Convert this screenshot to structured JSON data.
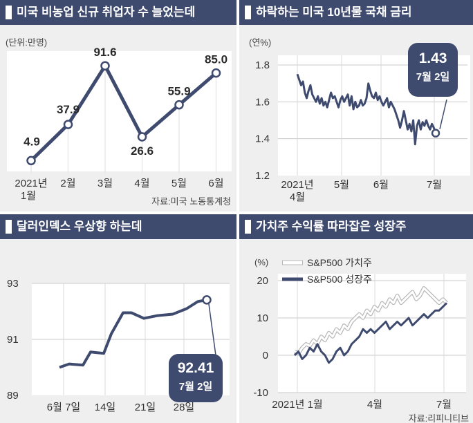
{
  "colors": {
    "header_bg": "#3e4a6e",
    "line": "#3e4a6e",
    "panel_bg": "#efeff0",
    "plot_bg": "#ffffff",
    "value_line": "#e9e9e9"
  },
  "panels": {
    "p1": {
      "title": "미국 비농업 신규 취업자 수 늘었는데",
      "unit": "(단위:만명)",
      "source": "자료:미국 노동통계청"
    },
    "p2": {
      "title": "하락하는 미국 10년물 국채 금리",
      "unit": "(연%)",
      "callout_value": "1.43",
      "callout_date": "7월 2일"
    },
    "p3": {
      "title": "달러인덱스 우상향 하는데",
      "callout_value": "92.41",
      "callout_date": "7월 2일"
    },
    "p4": {
      "title": "가치주 수익률 따라잡은 성장주",
      "unit": "(%)",
      "source": "자료:리피니티브"
    }
  },
  "chart_data": [
    {
      "type": "line",
      "title": "미국 비농업 신규 취업자 수 늘었는데",
      "unit": "(단위:만명)",
      "categories": [
        "2021년 1월",
        "2월",
        "3월",
        "4월",
        "5월",
        "6월"
      ],
      "x_tick_labels": [
        [
          "2021년",
          "1월"
        ],
        [
          "2월"
        ],
        [
          "3월"
        ],
        [
          "4월"
        ],
        [
          "5월"
        ],
        [
          "6월"
        ]
      ],
      "values": [
        4.9,
        37.9,
        91.6,
        26.6,
        55.9,
        85.0
      ],
      "data_labels": [
        "4.9",
        "37.9",
        "91.6",
        "26.6",
        "55.9",
        "85.0"
      ],
      "ylim": [
        -5,
        105
      ],
      "grid": false
    },
    {
      "type": "line",
      "title": "하락하는 미국 10년물 국채 금리",
      "unit": "(연%)",
      "y_ticks": [
        "1.8",
        "1.6",
        "1.4",
        "1.2"
      ],
      "x_ticks": [
        [
          "2021년",
          "4월"
        ],
        [
          "5월"
        ],
        [
          "6월"
        ],
        [
          "7월"
        ]
      ],
      "ylim": [
        1.2,
        1.8
      ],
      "grid": true,
      "annotation": {
        "value": "1.43",
        "date": "7월 2일"
      },
      "series": [
        {
          "values": [
            1.75,
            1.72,
            1.69,
            1.71,
            1.65,
            1.62,
            1.66,
            1.69,
            1.64,
            1.62,
            1.6,
            1.63,
            1.59,
            1.62,
            1.58,
            1.6,
            1.57,
            1.61,
            1.65,
            1.62,
            1.63,
            1.6,
            1.57,
            1.61,
            1.63,
            1.6,
            1.62,
            1.64,
            1.58,
            1.63,
            1.56,
            1.6,
            1.57,
            1.58,
            1.61,
            1.58,
            1.59,
            1.62,
            1.7,
            1.66,
            1.63,
            1.62,
            1.65,
            1.61,
            1.63,
            1.6,
            1.58,
            1.6,
            1.62,
            1.57,
            1.6,
            1.58,
            1.56,
            1.53,
            1.5,
            1.46,
            1.5,
            1.55,
            1.5,
            1.45,
            1.48,
            1.44,
            1.5,
            1.37,
            1.47,
            1.5,
            1.45,
            1.49,
            1.47,
            1.5,
            1.47,
            1.45,
            1.48,
            1.46,
            1.43
          ]
        }
      ]
    },
    {
      "type": "line",
      "title": "달러인덱스 우상향 하는데",
      "y_ticks": [
        "93",
        "91",
        "89"
      ],
      "x_ticks": [
        "6월 7일",
        "14일",
        "21일",
        "28일"
      ],
      "ylim": [
        89,
        93
      ],
      "grid": true,
      "annotation": {
        "value": "92.41",
        "date": "7월 2일"
      },
      "series": [
        {
          "values": [
            90.0,
            90.12,
            90.08,
            90.55,
            90.5,
            91.2,
            91.95,
            91.95,
            91.75,
            91.85,
            91.9,
            92.1,
            92.35,
            92.41
          ]
        }
      ]
    },
    {
      "type": "line",
      "title": "가치주 수익률 따라잡은 성장주",
      "unit": "(%)",
      "y_ticks": [
        "20",
        "10",
        "0",
        "-10"
      ],
      "x_ticks": [
        "2021년 1월",
        "4월",
        "7월"
      ],
      "ylim": [
        -10,
        20
      ],
      "grid": true,
      "legend": "top-left",
      "series": [
        {
          "name": "S&P500 가치주",
          "color": "#ffffff",
          "values": [
            1,
            0.5,
            2,
            3,
            2.5,
            4,
            3,
            5,
            4,
            6,
            5,
            7,
            6,
            8,
            7,
            9,
            10,
            11,
            10,
            12,
            11,
            13,
            12,
            14,
            13,
            15,
            14,
            16,
            14,
            15,
            16,
            17,
            15,
            16,
            18,
            17,
            16,
            15,
            14,
            15,
            14
          ]
        },
        {
          "name": "S&P500 성장주",
          "color": "#3e4a6e",
          "values": [
            0,
            1,
            -1,
            0,
            2,
            1,
            3,
            1,
            0,
            -2,
            -1,
            1,
            2,
            0,
            1,
            3,
            4,
            5,
            7,
            6,
            7,
            6,
            7,
            8,
            9,
            7,
            8,
            9,
            8,
            9,
            10,
            8,
            9,
            10,
            11,
            10,
            11,
            12,
            12,
            13,
            14
          ]
        }
      ]
    }
  ]
}
